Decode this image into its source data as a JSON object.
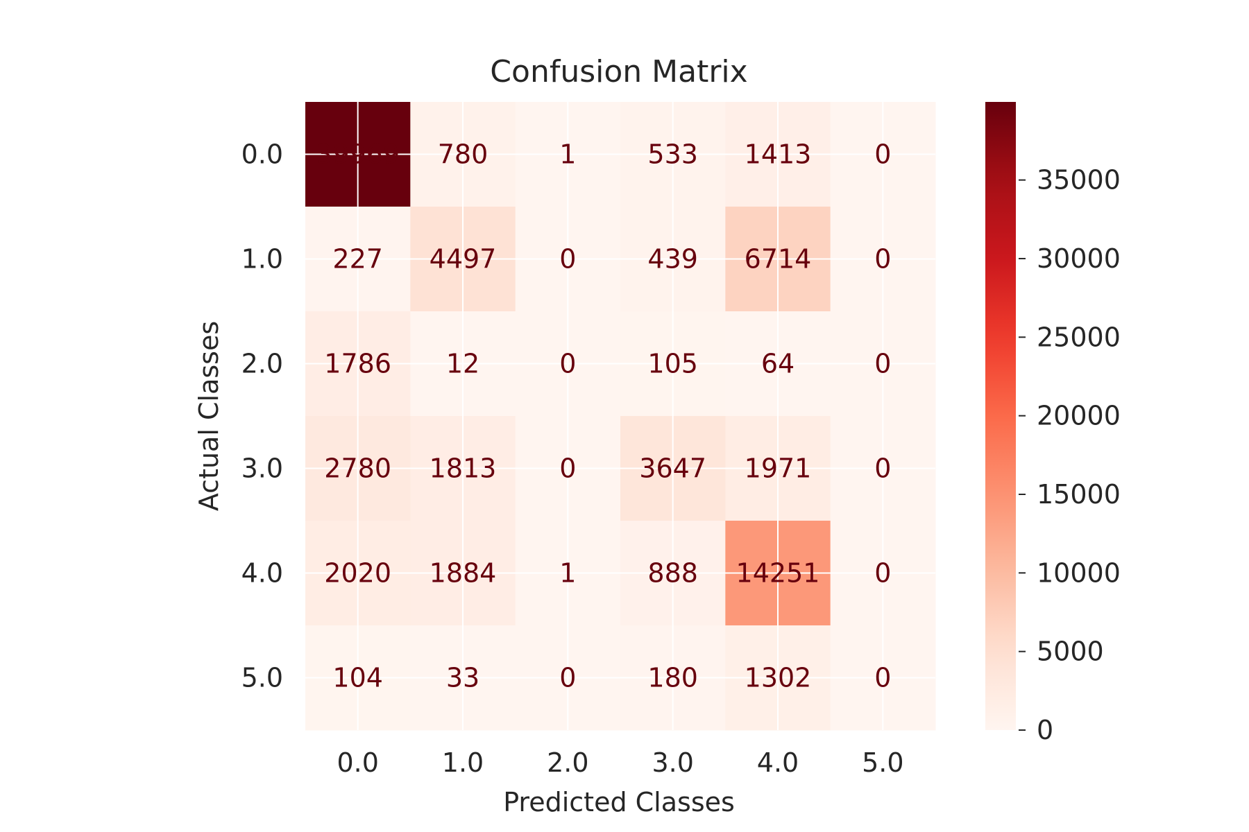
{
  "chart_data": {
    "type": "heatmap",
    "title": "Confusion Matrix",
    "xlabel": "Predicted Classes",
    "ylabel": "Actual Classes",
    "x_categories": [
      "0.0",
      "1.0",
      "2.0",
      "3.0",
      "4.0",
      "5.0"
    ],
    "y_categories": [
      "0.0",
      "1.0",
      "2.0",
      "3.0",
      "4.0",
      "5.0"
    ],
    "values": [
      [
        39969,
        780,
        1,
        533,
        1413,
        0
      ],
      [
        227,
        4497,
        0,
        439,
        6714,
        0
      ],
      [
        1786,
        12,
        0,
        105,
        64,
        0
      ],
      [
        2780,
        1813,
        0,
        3647,
        1971,
        0
      ],
      [
        2020,
        1884,
        1,
        888,
        14251,
        0
      ],
      [
        104,
        33,
        0,
        180,
        1302,
        0
      ]
    ],
    "colormap": "Reds",
    "colorbar": {
      "range": [
        0,
        39969
      ],
      "ticks": [
        0,
        5000,
        10000,
        15000,
        20000,
        25000,
        30000,
        35000
      ],
      "tick_labels": [
        "0",
        "5000",
        "10000",
        "15000",
        "20000",
        "25000",
        "30000",
        "35000"
      ]
    },
    "annotation_color": "#67000d",
    "grid": true,
    "grid_color": "#ffffff"
  }
}
